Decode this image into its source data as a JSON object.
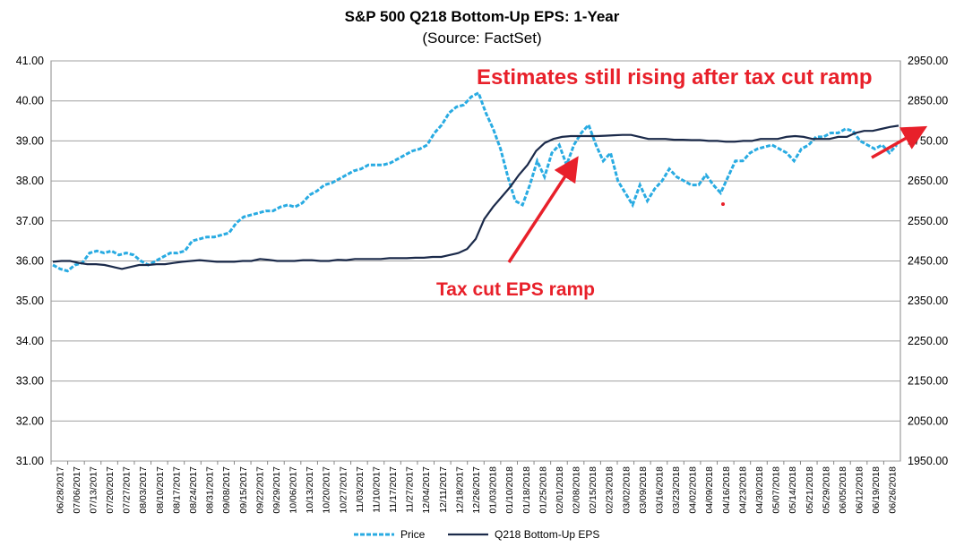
{
  "chart_data": {
    "type": "line",
    "title": "S&P 500 Q218 Bottom-Up EPS: 1-Year",
    "subtitle": "(Source: FactSet)",
    "left_axis": {
      "ylim": [
        31.0,
        41.0
      ],
      "ticks": [
        "31.00",
        "32.00",
        "33.00",
        "34.00",
        "35.00",
        "36.00",
        "37.00",
        "38.00",
        "39.00",
        "40.00",
        "41.00"
      ]
    },
    "right_axis": {
      "ylim": [
        1950,
        2950
      ],
      "ticks": [
        "1950.00",
        "2050.00",
        "2150.00",
        "2250.00",
        "2350.00",
        "2450.00",
        "2550.00",
        "2650.00",
        "2750.00",
        "2850.00",
        "2950.00"
      ]
    },
    "x_tick_labels": [
      "06/28/2017",
      "07/06/2017",
      "07/13/2017",
      "07/20/2017",
      "07/27/2017",
      "08/03/2017",
      "08/10/2017",
      "08/17/2017",
      "08/24/2017",
      "08/31/2017",
      "09/08/2017",
      "09/15/2017",
      "09/22/2017",
      "09/29/2017",
      "10/06/2017",
      "10/13/2017",
      "10/20/2017",
      "10/27/2017",
      "11/03/2017",
      "11/10/2017",
      "11/17/2017",
      "11/27/2017",
      "12/04/2017",
      "12/11/2017",
      "12/18/2017",
      "12/26/2017",
      "01/03/2018",
      "01/10/2018",
      "01/18/2018",
      "01/25/2018",
      "02/01/2018",
      "02/08/2018",
      "02/15/2018",
      "02/23/2018",
      "03/02/2018",
      "03/09/2018",
      "03/16/2018",
      "03/23/2018",
      "04/02/2018",
      "04/09/2018",
      "04/16/2018",
      "04/23/2018",
      "04/30/2018",
      "05/07/2018",
      "05/14/2018",
      "05/21/2018",
      "05/29/2018",
      "06/05/2018",
      "06/12/2018",
      "06/19/2018",
      "06/26/2018"
    ],
    "series": [
      {
        "name": "Price",
        "axis": "right",
        "style": "dashed",
        "color": "#29abe2",
        "values": [
          2440,
          2430,
          2425,
          2440,
          2445,
          2470,
          2475,
          2470,
          2475,
          2465,
          2470,
          2465,
          2450,
          2440,
          2450,
          2460,
          2470,
          2470,
          2475,
          2500,
          2505,
          2510,
          2510,
          2515,
          2520,
          2545,
          2560,
          2565,
          2570,
          2575,
          2575,
          2585,
          2590,
          2585,
          2595,
          2615,
          2625,
          2640,
          2645,
          2655,
          2665,
          2675,
          2680,
          2690,
          2690,
          2690,
          2695,
          2705,
          2715,
          2725,
          2730,
          2740,
          2770,
          2790,
          2820,
          2835,
          2840,
          2860,
          2870,
          2820,
          2780,
          2730,
          2660,
          2600,
          2590,
          2640,
          2700,
          2660,
          2720,
          2740,
          2690,
          2740,
          2770,
          2790,
          2740,
          2700,
          2720,
          2650,
          2620,
          2590,
          2640,
          2600,
          2630,
          2650,
          2680,
          2660,
          2650,
          2640,
          2640,
          2665,
          2640,
          2620,
          2660,
          2700,
          2700,
          2720,
          2730,
          2735,
          2740,
          2730,
          2720,
          2700,
          2730,
          2740,
          2760,
          2760,
          2770,
          2770,
          2780,
          2775,
          2750,
          2740,
          2730,
          2740,
          2720,
          2740
        ]
      },
      {
        "name": "Q218 Bottom-Up EPS",
        "axis": "left",
        "style": "solid",
        "color": "#1b2a4a",
        "values": [
          35.98,
          36.0,
          36.0,
          35.95,
          35.92,
          35.92,
          35.9,
          35.85,
          35.8,
          35.85,
          35.9,
          35.9,
          35.92,
          35.92,
          35.95,
          35.98,
          36.0,
          36.02,
          36.0,
          35.98,
          35.98,
          35.98,
          36.0,
          36.0,
          36.05,
          36.03,
          36.0,
          36.0,
          36.0,
          36.02,
          36.02,
          36.0,
          36.0,
          36.03,
          36.02,
          36.05,
          36.05,
          36.05,
          36.05,
          36.07,
          36.07,
          36.07,
          36.08,
          36.08,
          36.1,
          36.1,
          36.15,
          36.2,
          36.3,
          36.55,
          37.05,
          37.35,
          37.6,
          37.85,
          38.15,
          38.4,
          38.75,
          38.95,
          39.05,
          39.1,
          39.12,
          39.12,
          39.12,
          39.12,
          39.13,
          39.14,
          39.15,
          39.15,
          39.1,
          39.05,
          39.05,
          39.05,
          39.03,
          39.03,
          39.02,
          39.02,
          39.0,
          39.0,
          38.98,
          38.98,
          39.0,
          39.0,
          39.05,
          39.05,
          39.05,
          39.1,
          39.12,
          39.1,
          39.05,
          39.05,
          39.05,
          39.1,
          39.1,
          39.2,
          39.25,
          39.25,
          39.3,
          39.35,
          39.38
        ]
      }
    ],
    "legend": {
      "position": "bottom",
      "items": [
        {
          "label": "Price",
          "style": "dashed",
          "color": "#29abe2"
        },
        {
          "label": "Q218 Bottom-Up EPS",
          "style": "solid",
          "color": "#1b2a4a"
        }
      ]
    },
    "annotations": [
      {
        "text": "Estimates still rising after tax cut ramp",
        "color": "#e8202a"
      },
      {
        "text": "Tax cut EPS ramp",
        "color": "#e8202a"
      }
    ],
    "grid": true
  }
}
